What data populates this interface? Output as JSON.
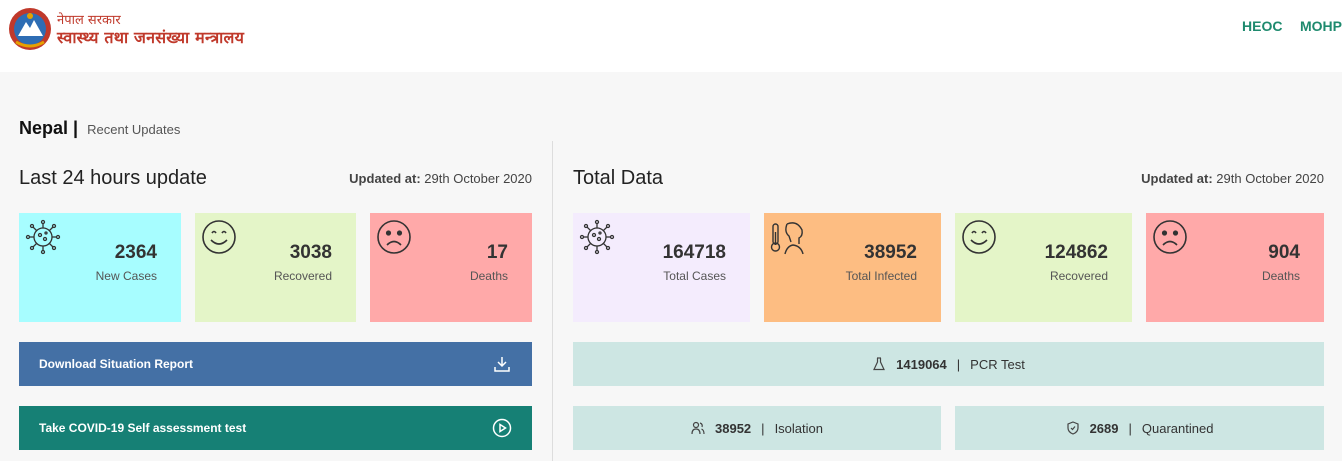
{
  "header": {
    "brand_line1": "नेपाल सरकार",
    "brand_line2": "स्वास्थ्य तथा जनसंख्या मन्त्रालय",
    "nav": [
      {
        "label": "HEOC"
      },
      {
        "label": "MOHP"
      }
    ]
  },
  "breadcrumb": {
    "country": "Nepal",
    "separator": "|",
    "section": "Recent Updates"
  },
  "last24": {
    "title": "Last 24 hours update",
    "updated_label": "Updated at:",
    "updated_value": "29th October 2020",
    "cards": [
      {
        "value": "2364",
        "label": "New Cases",
        "color": "#a7fdff",
        "icon": "virus-icon"
      },
      {
        "value": "3038",
        "label": "Recovered",
        "color": "#e4f5c8",
        "icon": "smile-icon"
      },
      {
        "value": "17",
        "label": "Deaths",
        "color": "#ffa9a9",
        "icon": "sad-icon"
      }
    ],
    "download_label": "Download Situation Report",
    "download_color": "#4470a5",
    "assessment_label": "Take COVID-19 Self assessment test",
    "assessment_color": "#168075"
  },
  "total": {
    "title": "Total Data",
    "updated_label": "Updated at:",
    "updated_value": "29th October 2020",
    "cards": [
      {
        "value": "164718",
        "label": "Total Cases",
        "color": "#f4ecfd",
        "icon": "virus-icon"
      },
      {
        "value": "38952",
        "label": "Total Infected",
        "color": "#fdbd82",
        "icon": "thermometer-person-icon"
      },
      {
        "value": "124862",
        "label": "Recovered",
        "color": "#e4f5c8",
        "icon": "smile-icon"
      },
      {
        "value": "904",
        "label": "Deaths",
        "color": "#ffa9a9",
        "icon": "sad-icon"
      }
    ],
    "pcr": {
      "value": "1419064",
      "label": "PCR Test"
    },
    "isolation": {
      "value": "38952",
      "label": "Isolation"
    },
    "quarantined": {
      "value": "2689",
      "label": "Quarantined"
    },
    "stat_sep": "|"
  }
}
